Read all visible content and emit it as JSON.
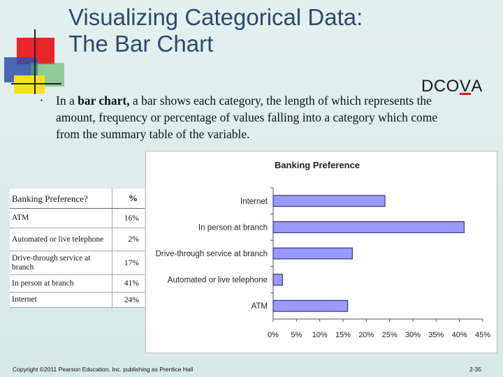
{
  "slide": {
    "title_line1": "Visualizing Categorical Data:",
    "title_line2": "The Bar Chart",
    "dcova_prefix": "DCO",
    "dcova_highlight": "V",
    "dcova_suffix": "A",
    "bullet_intro": "In a ",
    "bullet_bold": "bar chart,",
    "bullet_rest": " a bar shows each category, the length of which represents the amount, frequency or percentage of values falling into a category which come from the summary table of the variable.",
    "footer": "Copyright ©2011 Pearson Education, Inc. publishing as Prentice Hall",
    "page_number": "2-35"
  },
  "table": {
    "headers": [
      "Banking Preference?",
      "%"
    ],
    "rows": [
      {
        "label": "ATM",
        "pct": "16%"
      },
      {
        "label": "Automated or live telephone",
        "pct": "2%"
      },
      {
        "label": "Drive-through service at branch",
        "pct": "17%"
      },
      {
        "label": "In person at branch",
        "pct": "41%"
      },
      {
        "label": "Internet",
        "pct": "24%"
      }
    ]
  },
  "chart_data": {
    "type": "bar",
    "orientation": "horizontal",
    "title": "Banking Preference",
    "categories": [
      "Internet",
      "In person at branch",
      "Drive-through service at branch",
      "Automated or live telephone",
      "ATM"
    ],
    "values": [
      24,
      41,
      17,
      2,
      16
    ],
    "xlim": [
      0,
      45
    ],
    "xticks": [
      "0%",
      "5%",
      "10%",
      "15%",
      "20%",
      "25%",
      "30%",
      "35%",
      "40%",
      "45%"
    ],
    "bar_color": "#9999ff",
    "grid": false,
    "legend": "none"
  }
}
